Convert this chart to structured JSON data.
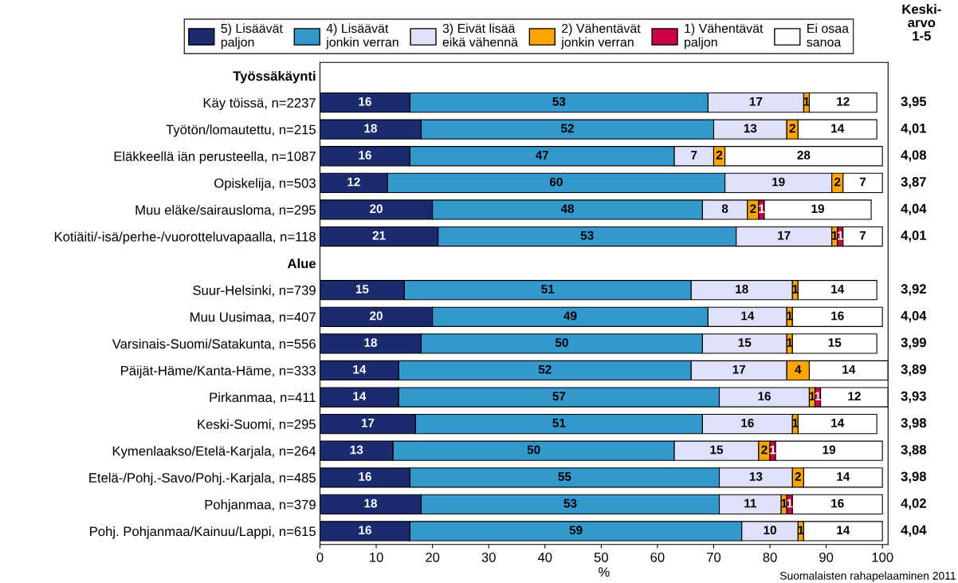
{
  "chart_data": {
    "type": "bar",
    "orientation": "horizontal",
    "stacked": true,
    "data_labels": true,
    "legend": "top",
    "grid": false,
    "xlabel": "%",
    "xlim": [
      0,
      101
    ],
    "xticks": [
      0,
      10,
      20,
      30,
      40,
      50,
      60,
      70,
      80,
      90,
      100
    ],
    "categories": [
      "Työssäkäynti",
      "Käy töissä, n=2237",
      "Työtön/lomautettu, n=215",
      "Eläkkeellä iän perusteella, n=1087",
      "Opiskelija, n=503",
      "Muu eläke/sairausloma, n=295",
      "Kotiäiti/-isä/perhe-/vuorotteluvapaalla, n=118",
      "Alue",
      "Suur-Helsinki, n=739",
      "Muu Uusimaa, n=407",
      "Varsinais-Suomi/Satakunta, n=556",
      "Päijät-Häme/Kanta-Häme, n=333",
      "Pirkanmaa, n=411",
      "Keski-Suomi, n=295",
      "Kymenlaakso/Etelä-Karjala, n=264",
      "Etelä-/Pohj.-Savo/Pohj.-Karjala, n=485",
      "Pohjanmaa, n=379",
      "Pohj. Pohjanmaa/Kainuu/Lappi, n=615"
    ],
    "series": [
      {
        "name": "5) Lisäävät\npaljon",
        "color": "#1c2a6e",
        "values": [
          null,
          16,
          18,
          16,
          12,
          20,
          21,
          null,
          15,
          20,
          18,
          14,
          14,
          17,
          13,
          16,
          18,
          16
        ]
      },
      {
        "name": "4) Lisäävät\njonkin verran",
        "color": "#3399cc",
        "values": [
          null,
          53,
          52,
          47,
          60,
          48,
          53,
          null,
          51,
          49,
          50,
          52,
          57,
          51,
          50,
          55,
          53,
          59
        ]
      },
      {
        "name": "3) Eivät lisää\neikä vähennä",
        "color": "#e0e0f8",
        "values": [
          null,
          17,
          13,
          7,
          19,
          8,
          17,
          null,
          18,
          14,
          15,
          17,
          16,
          16,
          15,
          13,
          11,
          10
        ]
      },
      {
        "name": "2) Vähentävät\njonkin verran",
        "color": "#ffa500",
        "values": [
          null,
          1,
          2,
          2,
          2,
          2,
          1,
          null,
          1,
          1,
          1,
          4,
          1,
          1,
          2,
          2,
          1,
          1
        ]
      },
      {
        "name": "1) Vähentävät\npaljon",
        "color": "#cc0044",
        "values": [
          null,
          null,
          null,
          null,
          null,
          1,
          1,
          null,
          null,
          null,
          null,
          null,
          1,
          null,
          1,
          null,
          1,
          null
        ]
      },
      {
        "name": "Ei osaa\nsanoa",
        "color": "#ffffff",
        "values": [
          null,
          12,
          14,
          28,
          7,
          19,
          7,
          null,
          14,
          16,
          15,
          14,
          12,
          14,
          19,
          14,
          16,
          14
        ]
      }
    ],
    "annotations": [
      "Keski-\narvo\n1-5",
      "3,95",
      "4,01",
      "4,08",
      "3,87",
      "4,04",
      "4,01",
      "3,92",
      "4,04",
      "3,99",
      "3,89",
      "3,93",
      "3,98",
      "3,88",
      "3,98",
      "4,02",
      "4,04",
      "Suomalaisten rahapelaaminen 2011"
    ]
  }
}
